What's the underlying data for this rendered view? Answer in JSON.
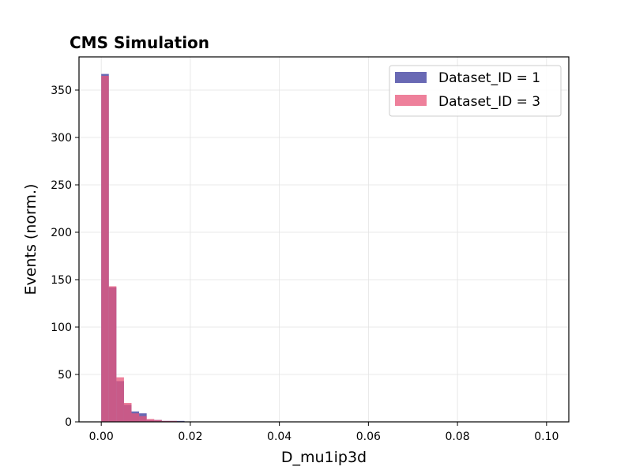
{
  "chart_data": {
    "type": "bar",
    "title": "CMS Simulation",
    "xlabel": "D_mu1ip3d",
    "ylabel": "Events (norm.)",
    "xlim": [
      -0.005,
      0.105
    ],
    "ylim": [
      0,
      385
    ],
    "xticks": [
      "0.00",
      "0.02",
      "0.04",
      "0.06",
      "0.08",
      "0.10"
    ],
    "yticks": [
      "0",
      "50",
      "100",
      "150",
      "200",
      "250",
      "300",
      "350"
    ],
    "grid": true,
    "legend_position": "top-right",
    "bin_edges": [
      0.0,
      0.0017,
      0.0034,
      0.0051,
      0.0068,
      0.0085,
      0.0102,
      0.0119,
      0.0136,
      0.0153,
      0.017,
      0.0187
    ],
    "series": [
      {
        "name": "Dataset_ID = 1",
        "color": "#3f3f9f",
        "values": [
          367,
          142,
          43,
          18,
          11,
          9,
          2,
          2,
          1,
          1,
          1
        ]
      },
      {
        "name": "Dataset_ID = 3",
        "color": "#e8557a",
        "values": [
          365,
          143,
          47,
          20,
          9,
          6,
          3,
          2,
          1,
          1,
          0
        ]
      }
    ]
  }
}
